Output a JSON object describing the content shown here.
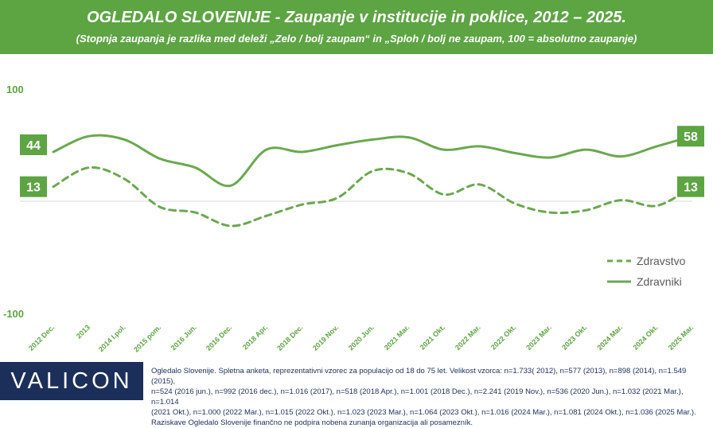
{
  "header": {
    "title": "OGLEDALO SLOVENIJE - Zaupanje v institucije in poklice, 2012 – 2025.",
    "subtitle": "(Stopnja zaupanja je razlika med deleži „Zelo / bolj zaupam“ in „Sploh / bolj ne zaupam, 100 = absolutno zaupanje)"
  },
  "colors": {
    "header_bg": "#5da443",
    "line": "#6aa84f",
    "label_bg": "#5da443",
    "axis_text": "#5da443",
    "footer_bg": "#1c2f5a",
    "footer_text": "#1c2f5a"
  },
  "chart_data": {
    "type": "line",
    "categories": [
      "2012 Dec.",
      "2013",
      "2014 I.pol.",
      "2015 pom.",
      "2016 Jun.",
      "2016 Dec.",
      "2018 Apr.",
      "2018 Dec.",
      "2019 Nov.",
      "2020 Jun.",
      "2021 Mar.",
      "2021 Okt.",
      "2022 Mar.",
      "2022 Okt.",
      "2023 Mar.",
      "2023 Okt.",
      "2024 Mar.",
      "2024 Okt.",
      "2025 Mar."
    ],
    "ylim": [
      -100,
      100
    ],
    "y_tick_labels": [
      "100",
      "-100"
    ],
    "grid": false,
    "legend_position": "bottom-right",
    "series": [
      {
        "name": "Zdravstvo",
        "style": "dashed",
        "values": [
          13,
          30,
          20,
          -5,
          -10,
          -22,
          -13,
          -3,
          3,
          27,
          25,
          6,
          15,
          -2,
          -10,
          -8,
          1,
          -4,
          13
        ]
      },
      {
        "name": "Zdravniki",
        "style": "solid",
        "values": [
          44,
          58,
          55,
          38,
          30,
          14,
          46,
          44,
          50,
          55,
          57,
          46,
          49,
          43,
          39,
          46,
          40,
          49,
          58
        ]
      }
    ],
    "end_labels": {
      "start": [
        "44",
        "13"
      ],
      "end": [
        "58",
        "13"
      ]
    }
  },
  "footer": {
    "logo": "VALICON",
    "note_lines": [
      "Ogledalo Slovenije. Spletna anketa, reprezentativni vzorec za populacijo od 18 do 75 let. Velikost vzorca: n=1.733( 2012), n=577 (2013), n=898 (2014), n=1.549 (2015),",
      "n=524 (2016 jun.), n=992 (2016 dec.), n=1.016 (2017), n=518 (2018 Apr.), n=1.001 (2018 Dec.), n=2.241 (2019 Nov.), n=536 (2020 Jun.), n=1.032 (2021 Mar.), n=1.014",
      "(2021 Okt.), n=1.000 (2022 Mar.), n=1.015 (2022 Okt.), n=1.023 (2023 Mar.), n=1.064 (2023 Okt.), n=1.016 (2024 Mar.), n=1.081 (2024 Okt.), n=1.036 (2025 Mar.).",
      "Raziskave Ogledalo Slovenije finančno ne podpira nobena zunanja organizacija ali posamezník."
    ]
  }
}
